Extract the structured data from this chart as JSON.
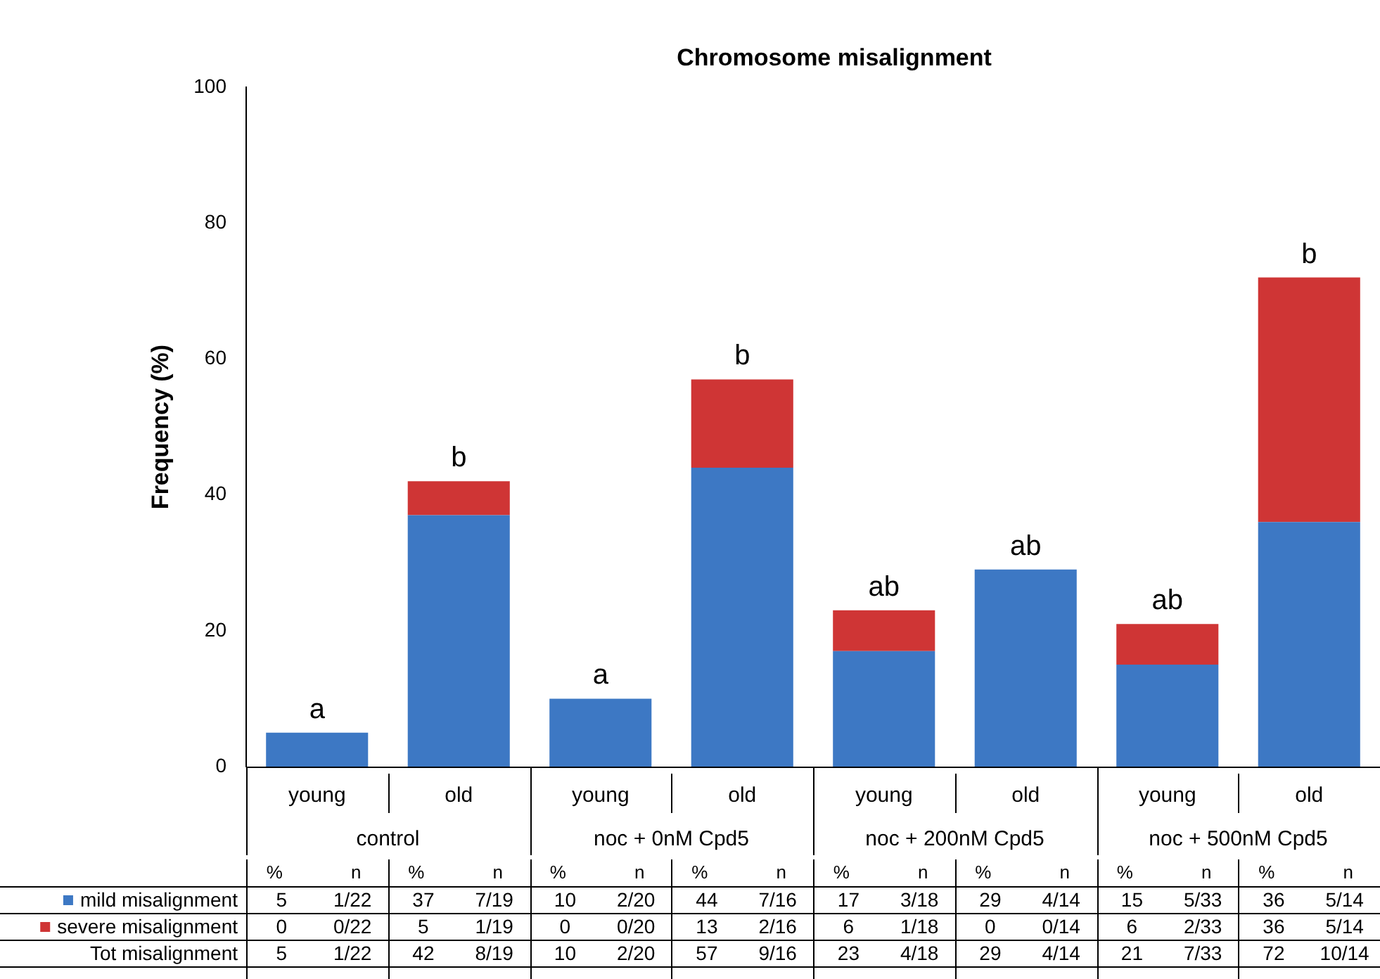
{
  "chart_data": {
    "type": "bar",
    "title": "Chromosome misalignment",
    "ylabel": "Frequency (%)",
    "categories": [
      "young",
      "old",
      "young",
      "old",
      "young",
      "old",
      "young",
      "old"
    ],
    "series": [
      {
        "name": "mild misalignment",
        "color": "#3d78c4",
        "values": [
          5,
          37,
          10,
          44,
          17,
          29,
          15,
          36
        ]
      },
      {
        "name": "severe misalignment",
        "color": "#cf3535",
        "values": [
          0,
          5,
          0,
          13,
          6,
          0,
          6,
          36
        ]
      }
    ],
    "stacked": true,
    "ylim": [
      0,
      100
    ],
    "yticks": [
      0,
      20,
      40,
      60,
      80,
      100
    ],
    "grid": false,
    "legend": "bottom",
    "annotations": [
      "a",
      "b",
      "a",
      "b",
      "ab",
      "ab",
      "ab",
      "b",
      "control",
      "noc + 0nM Cpd5",
      "noc + 200nM Cpd5",
      "noc + 500nM Cpd5",
      "Tot misalignment",
      "%",
      "n",
      "5",
      "1/22",
      "37",
      "7/19",
      "10",
      "2/20",
      "44",
      "7/16",
      "17",
      "3/18",
      "29",
      "4/14",
      "15",
      "5/33",
      "36",
      "5/14",
      "0",
      "0/22",
      "5",
      "1/19",
      "0",
      "0/20",
      "13",
      "2/16",
      "6",
      "1/18",
      "0",
      "0/14",
      "6",
      "2/33",
      "36",
      "5/14",
      "5",
      "1/22",
      "42",
      "8/19",
      "10",
      "2/20",
      "57",
      "9/16",
      "23",
      "4/18",
      "29",
      "4/14",
      "21",
      "7/33",
      "72",
      "10/14"
    ]
  }
}
